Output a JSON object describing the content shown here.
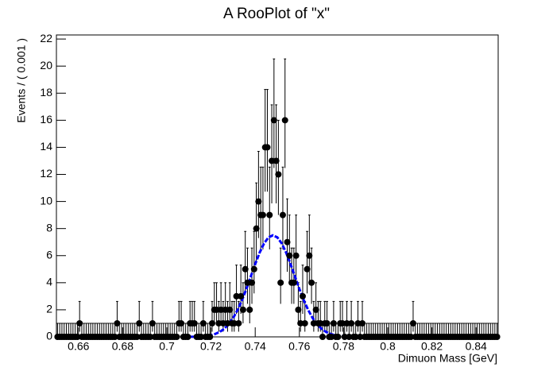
{
  "chart_data": {
    "type": "errorbar",
    "title": "A RooPlot of \"x\"",
    "x_label": "Dimuon Mass [GeV]",
    "y_label": "Events / ( 0.001 )",
    "color": "#000000",
    "xlim": [
      0.65,
      0.85
    ],
    "ylim": [
      0,
      22.3
    ],
    "xticks": [
      0.66,
      0.68,
      0.7,
      0.72,
      0.74,
      0.76,
      0.78,
      0.8,
      0.82,
      0.84
    ],
    "yticks": [
      0,
      2,
      4,
      6,
      8,
      10,
      12,
      14,
      16,
      18,
      20,
      22
    ],
    "x": [
      0.6505,
      0.6515,
      0.6525,
      0.6535,
      0.6545,
      0.6555,
      0.6565,
      0.6575,
      0.6585,
      0.6595,
      0.6605,
      0.6615,
      0.6625,
      0.6635,
      0.6645,
      0.6655,
      0.6665,
      0.6675,
      0.6685,
      0.6695,
      0.6705,
      0.6715,
      0.6725,
      0.6735,
      0.6745,
      0.6755,
      0.6765,
      0.6775,
      0.6785,
      0.6795,
      0.6805,
      0.6815,
      0.6825,
      0.6835,
      0.6845,
      0.6855,
      0.6865,
      0.6875,
      0.6885,
      0.6895,
      0.6905,
      0.6915,
      0.6925,
      0.6935,
      0.6945,
      0.6955,
      0.6965,
      0.6975,
      0.6985,
      0.6995,
      0.7005,
      0.7015,
      0.7025,
      0.7035,
      0.7045,
      0.7055,
      0.7065,
      0.7075,
      0.7085,
      0.7095,
      0.7105,
      0.7115,
      0.7125,
      0.7135,
      0.7145,
      0.7155,
      0.7165,
      0.7175,
      0.7185,
      0.7195,
      0.7205,
      0.7215,
      0.7225,
      0.7235,
      0.7245,
      0.7255,
      0.7265,
      0.7275,
      0.7285,
      0.7295,
      0.7305,
      0.7315,
      0.7325,
      0.7335,
      0.7345,
      0.7355,
      0.7365,
      0.7375,
      0.7385,
      0.7395,
      0.7405,
      0.7415,
      0.7425,
      0.7435,
      0.7445,
      0.7455,
      0.7465,
      0.7475,
      0.7485,
      0.7495,
      0.7505,
      0.7515,
      0.7525,
      0.7535,
      0.7545,
      0.7555,
      0.7565,
      0.7575,
      0.7585,
      0.7595,
      0.7605,
      0.7615,
      0.7625,
      0.7635,
      0.7645,
      0.7655,
      0.7665,
      0.7675,
      0.7685,
      0.7695,
      0.7705,
      0.7715,
      0.7725,
      0.7735,
      0.7745,
      0.7755,
      0.7765,
      0.7775,
      0.7785,
      0.7795,
      0.7805,
      0.7815,
      0.7825,
      0.7835,
      0.7845,
      0.7855,
      0.7865,
      0.7875,
      0.7885,
      0.7895,
      0.7905,
      0.7915,
      0.7925,
      0.7935,
      0.7945,
      0.7955,
      0.7965,
      0.7975,
      0.7985,
      0.7995,
      0.8005,
      0.8015,
      0.8025,
      0.8035,
      0.8045,
      0.8055,
      0.8065,
      0.8075,
      0.8085,
      0.8095,
      0.8105,
      0.8115,
      0.8125,
      0.8135,
      0.8145,
      0.8155,
      0.8165,
      0.8175,
      0.8185,
      0.8195,
      0.8205,
      0.8215,
      0.8225,
      0.8235,
      0.8245,
      0.8255,
      0.8265,
      0.8275,
      0.8285,
      0.8295,
      0.8305,
      0.8315,
      0.8325,
      0.8335,
      0.8345,
      0.8355,
      0.8365,
      0.8375,
      0.8385,
      0.8395,
      0.8405,
      0.8415,
      0.8425,
      0.8435,
      0.8445,
      0.8455,
      0.8465,
      0.8475,
      0.8485,
      0.8495
    ],
    "values": [
      0,
      0,
      0,
      0,
      0,
      0,
      0,
      0,
      0,
      0,
      1,
      0,
      0,
      0,
      0,
      0,
      0,
      0,
      0,
      0,
      0,
      0,
      0,
      0,
      0,
      0,
      0,
      1,
      0,
      0,
      0,
      0,
      0,
      0,
      0,
      0,
      0,
      1,
      0,
      0,
      0,
      0,
      0,
      1,
      0,
      0,
      0,
      0,
      0,
      0,
      0,
      0,
      0,
      0,
      0,
      1,
      1,
      0,
      0,
      0,
      1,
      1,
      1,
      0,
      0,
      0,
      1,
      0,
      0,
      0,
      1,
      2,
      2,
      1,
      2,
      1,
      2,
      1,
      2,
      1,
      1,
      3,
      1,
      3,
      2,
      5,
      4,
      2,
      4,
      5,
      8,
      10,
      9,
      9,
      14,
      14,
      9,
      13,
      16,
      13,
      12,
      4,
      9,
      16,
      7,
      6,
      4,
      4,
      6,
      2,
      1,
      3,
      1,
      5,
      6,
      4,
      1,
      2,
      1,
      1,
      0,
      1,
      1,
      0,
      0,
      1,
      0,
      0,
      1,
      1,
      0,
      1,
      0,
      1,
      0,
      0,
      1,
      0,
      1,
      0,
      0,
      0,
      0,
      0,
      0,
      0,
      0,
      0,
      0,
      0,
      0,
      0,
      0,
      0,
      0,
      0,
      0,
      0,
      0,
      0,
      0,
      1,
      0,
      0,
      0,
      0,
      0,
      0,
      0,
      0,
      0,
      0,
      0,
      0,
      0,
      0,
      0,
      0,
      0,
      0,
      0,
      0,
      0,
      0,
      0,
      0,
      0,
      0,
      0,
      0,
      0,
      0,
      0,
      0,
      0,
      0,
      0,
      0,
      0,
      0
    ],
    "curve": {
      "color": "#0000ff",
      "x": [
        0.71,
        0.712,
        0.714,
        0.716,
        0.718,
        0.72,
        0.722,
        0.724,
        0.726,
        0.728,
        0.73,
        0.732,
        0.734,
        0.736,
        0.738,
        0.74,
        0.742,
        0.744,
        0.746,
        0.748,
        0.75,
        0.752,
        0.754,
        0.756,
        0.758,
        0.76,
        0.762,
        0.764,
        0.766,
        0.768,
        0.77,
        0.772,
        0.774,
        0.776,
        0.778,
        0.78,
        0.782,
        0.784,
        0.786
      ],
      "values": [
        0.004,
        0.009,
        0.018,
        0.036,
        0.069,
        0.127,
        0.222,
        0.373,
        0.604,
        0.935,
        1.39,
        1.98,
        2.7,
        3.54,
        4.46,
        5.37,
        6.22,
        6.9,
        7.35,
        7.5,
        7.35,
        6.9,
        6.22,
        5.37,
        4.46,
        3.54,
        2.7,
        1.98,
        1.39,
        0.935,
        0.604,
        0.373,
        0.222,
        0.127,
        0.069,
        0.036,
        0.018,
        0.009,
        0.004
      ]
    }
  }
}
